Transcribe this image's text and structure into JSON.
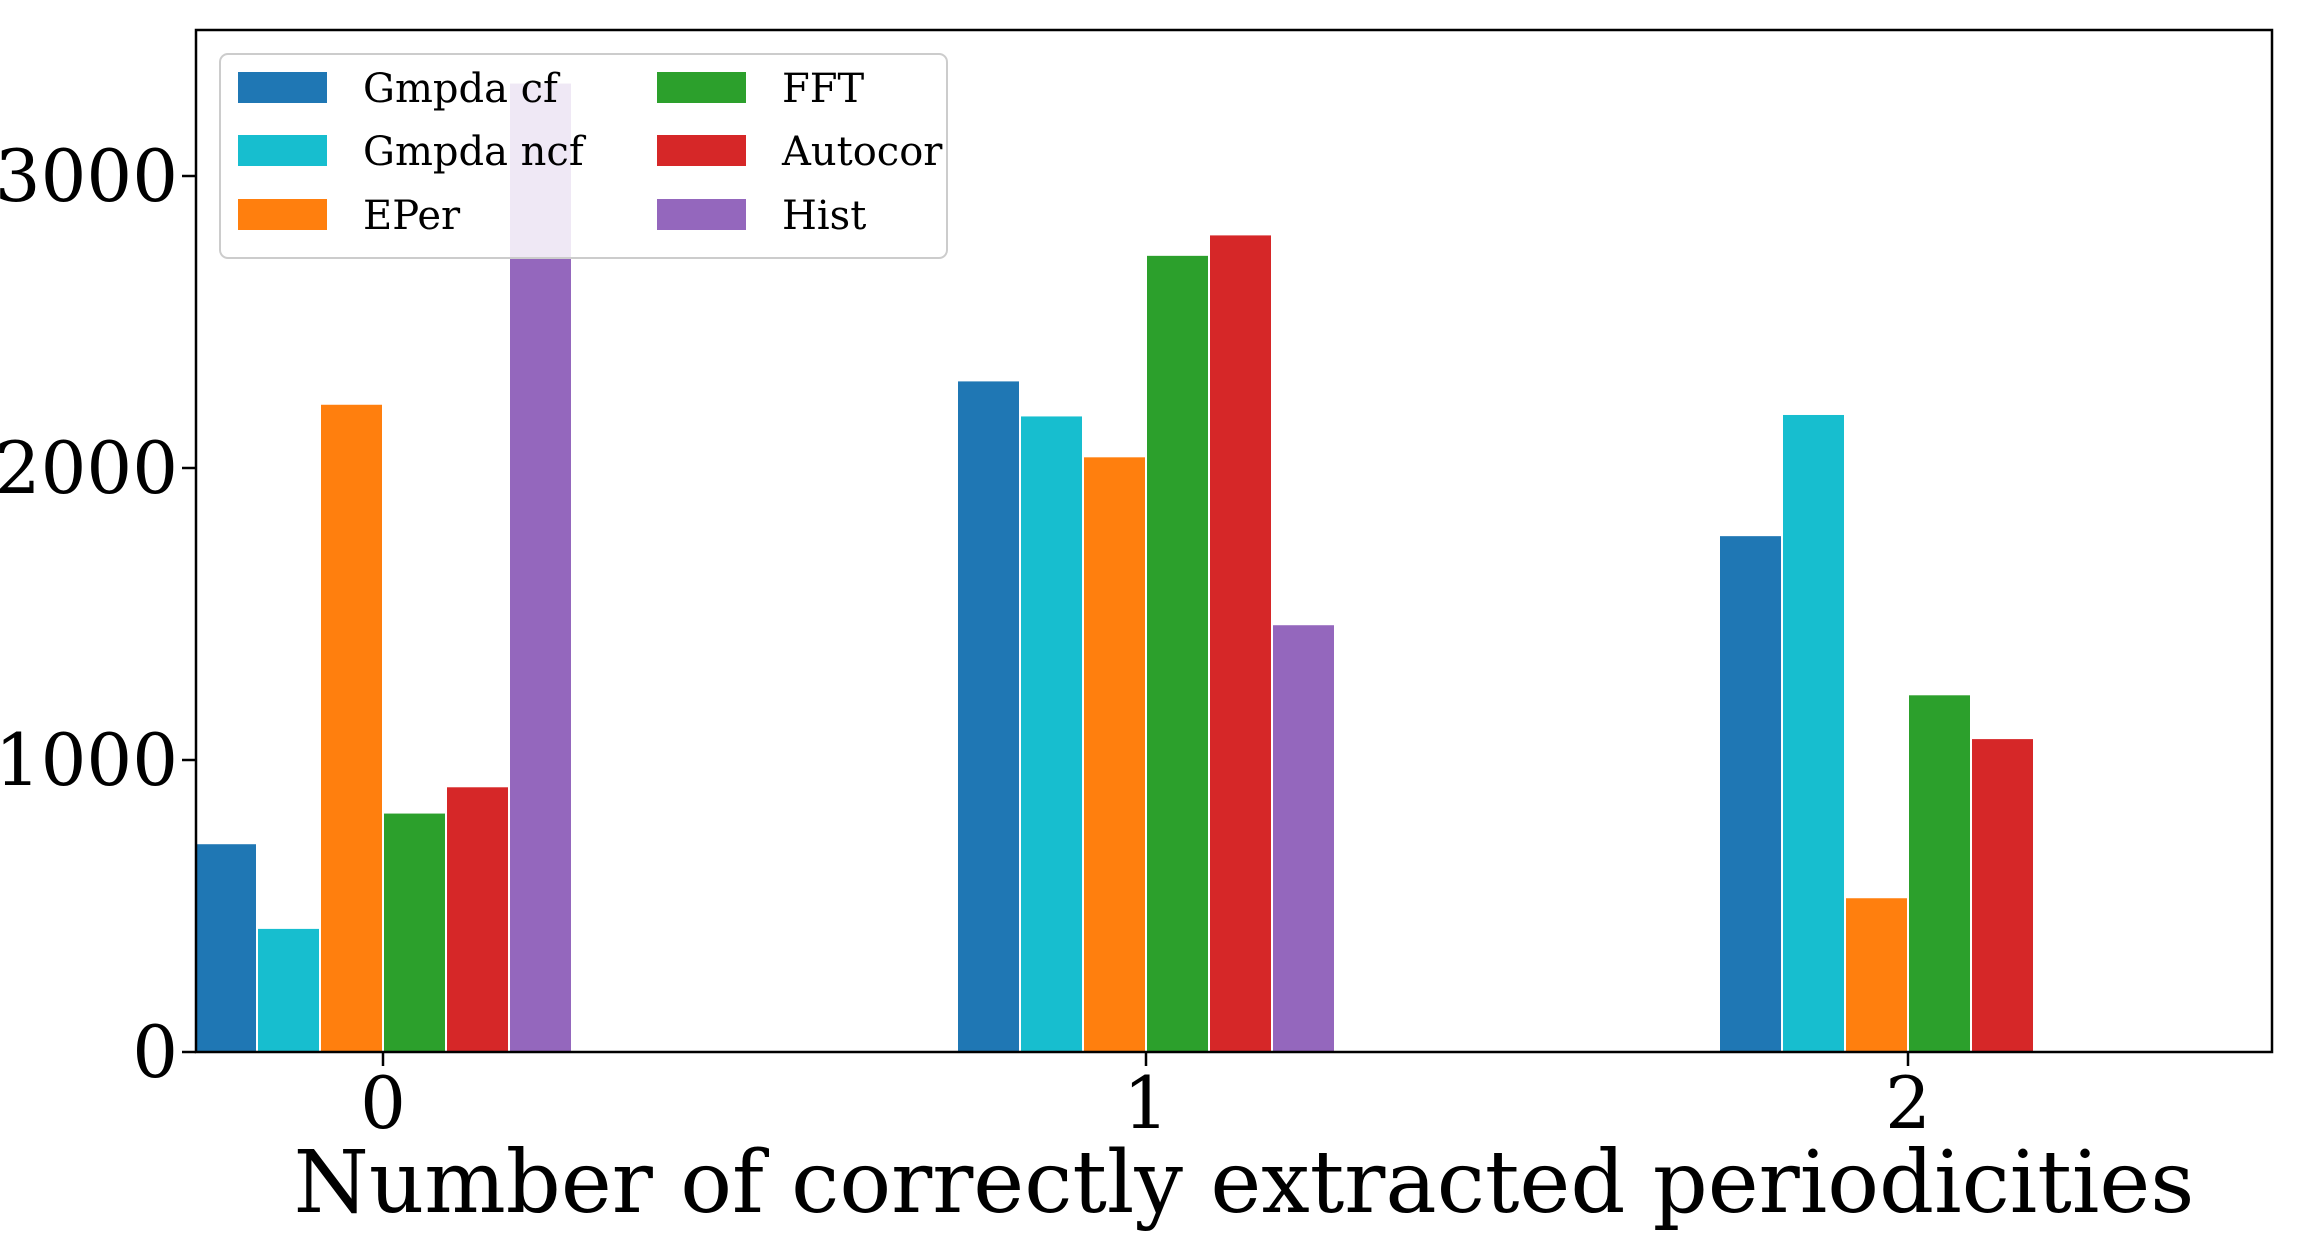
{
  "chart_data": {
    "type": "bar",
    "title": "",
    "xlabel": "Number of correctly extracted periodicities",
    "ylabel": "",
    "categories": [
      "0",
      "1",
      "2"
    ],
    "ylim": [
      0,
      3500
    ],
    "yticks": [
      0,
      1000,
      2000,
      3000
    ],
    "grid": false,
    "legend_position": "top-left",
    "legend_columns": 2,
    "series": [
      {
        "name": "Gmpda cf",
        "color": "#1f77b4",
        "values": [
          715,
          2300,
          1770
        ]
      },
      {
        "name": "Gmpda ncf",
        "color": "#17becf",
        "values": [
          425,
          2180,
          2185
        ]
      },
      {
        "name": "EPer",
        "color": "#ff7f0e",
        "values": [
          2220,
          2040,
          530
        ]
      },
      {
        "name": "FFT",
        "color": "#2ca02c",
        "values": [
          820,
          2730,
          1225
        ]
      },
      {
        "name": "Autocor",
        "color": "#d62728",
        "values": [
          910,
          2800,
          1075
        ]
      },
      {
        "name": "Hist",
        "color": "#9467bd",
        "values": [
          3320,
          1465,
          0
        ]
      }
    ]
  }
}
